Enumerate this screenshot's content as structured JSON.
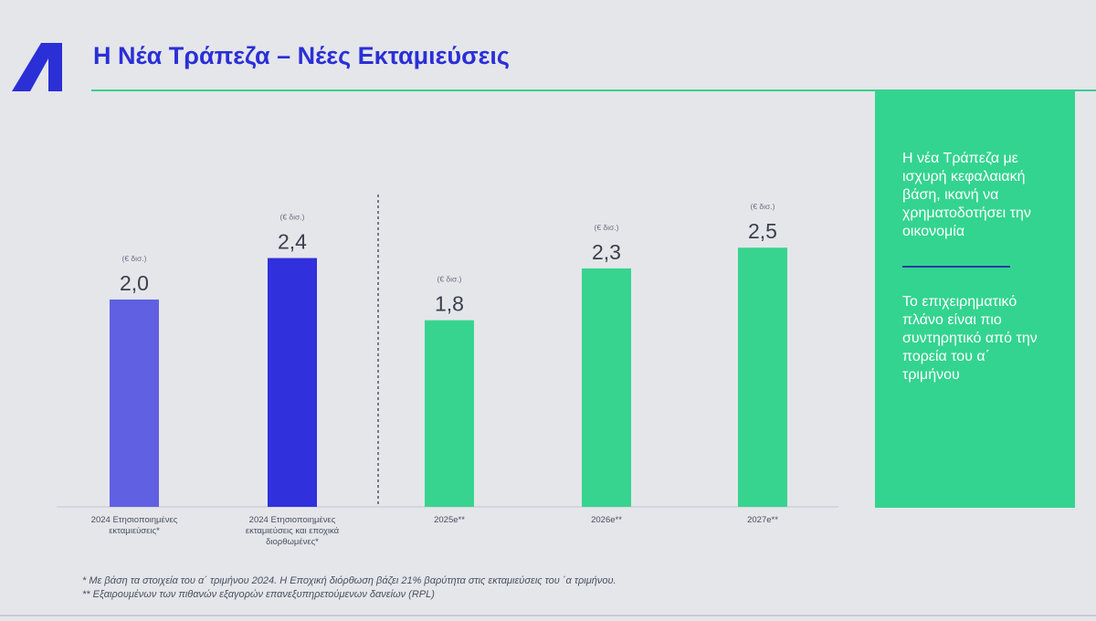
{
  "header": {
    "title": "Η Νέα Τράπεζα – Νέες Εκταμιεύσεις"
  },
  "side_panel": {
    "text_1": "Η νέα Τράπεζα με ισχυρή κεφαλαιακή βάση, ικανή να χρηματοδοτήσει την οικονομία",
    "text_2": "Το επιχειρηματικό πλάνο είναι πιο συντηρητικό από την πορεία του α΄ τριμήνου"
  },
  "footnotes": {
    "note_1": "* Με βάση τα στοιχεία του α΄ τριμήνου 2024. Η Εποχική διόρθωση βάζει 21% βαρύτητα στις εκταμιεύσεις του ΄α τριμήνου.",
    "note_2": "**  Εξαιρουμένων των πιθανών εξαγορών επανεξυπηρετούμενων δανείων (RPL)"
  },
  "colors": {
    "brand_blue": "#2b2fd6",
    "accent_green": "#33d48f"
  },
  "chart_data": {
    "type": "bar",
    "categories": [
      [
        "2024 Ετησιοποιημένες",
        "εκταμιεύσεις*"
      ],
      [
        "2024 Ετησιοποιημένες",
        "εκταμιεύσεις και εποχικά",
        "διορθωμένες*"
      ],
      [
        "2025e**"
      ],
      [
        "2026e**"
      ],
      [
        "2027e**"
      ]
    ],
    "values": [
      2.0,
      2.4,
      1.8,
      2.3,
      2.5
    ],
    "value_labels": [
      "2,0",
      "2,4",
      "1,8",
      "2,3",
      "2,5"
    ],
    "unit_label": "(€ δισ.)",
    "colors": [
      "#6060e2",
      "#3030dc",
      "#37d48f",
      "#37d48f",
      "#37d48f"
    ],
    "ylim": [
      0,
      3.7
    ],
    "divider_after_index": 1,
    "title": "",
    "xlabel": "",
    "ylabel": ""
  }
}
